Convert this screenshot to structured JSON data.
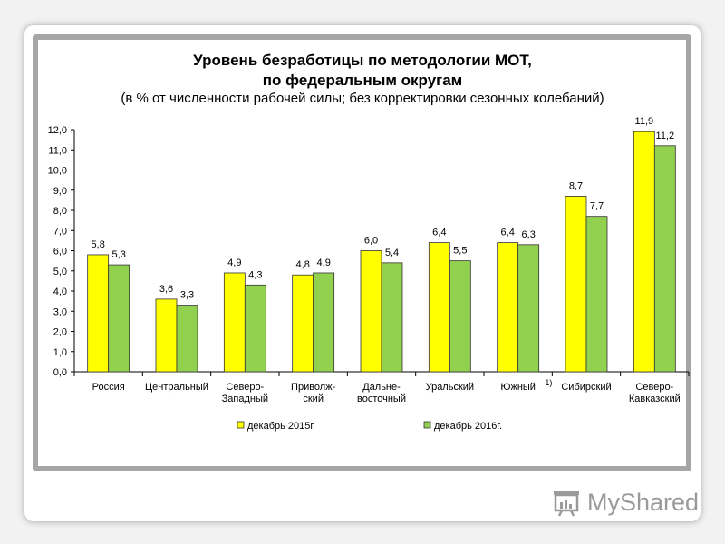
{
  "chart_data": {
    "type": "bar",
    "title_line1": "Уровень безработицы по методологии МОТ,",
    "title_line2": "по федеральным округам",
    "subtitle": "(в % от численности рабочей силы; без корректировки сезонных колебаний)",
    "categories": [
      [
        "Россия"
      ],
      [
        "Центральный"
      ],
      [
        "Северо-",
        "Западный"
      ],
      [
        "Приволж-",
        "ский"
      ],
      [
        "Дальне-",
        "восточный"
      ],
      [
        "Уральский"
      ],
      [
        "Южный"
      ],
      [
        "Сибирский"
      ],
      [
        "Северо-",
        "Кавказский"
      ]
    ],
    "footnote_mark": "1)",
    "series": [
      {
        "name": "декабрь 2015г.",
        "color": "#ffff00",
        "values": [
          5.8,
          3.6,
          4.9,
          4.8,
          6.0,
          6.4,
          6.4,
          8.7,
          11.9
        ],
        "labels": [
          "5,8",
          "3,6",
          "4,9",
          "4,8",
          "6,0",
          "6,4",
          "6,4",
          "8,7",
          "11,9"
        ]
      },
      {
        "name": "декабрь 2016г.",
        "color": "#92d050",
        "values": [
          5.3,
          3.3,
          4.3,
          4.9,
          5.4,
          5.5,
          6.3,
          7.7,
          11.2
        ],
        "labels": [
          "5,3",
          "3,3",
          "4,3",
          "4,9",
          "5,4",
          "5,5",
          "6,3",
          "7,7",
          "11,2"
        ]
      }
    ],
    "ylim": [
      0,
      12
    ],
    "yticks": [
      "0,0",
      "1,0",
      "2,0",
      "3,0",
      "4,0",
      "5,0",
      "6,0",
      "7,0",
      "8,0",
      "9,0",
      "10,0",
      "11,0",
      "12,0"
    ],
    "legend_position": "bottom"
  },
  "logo": {
    "text": "MyShared"
  }
}
